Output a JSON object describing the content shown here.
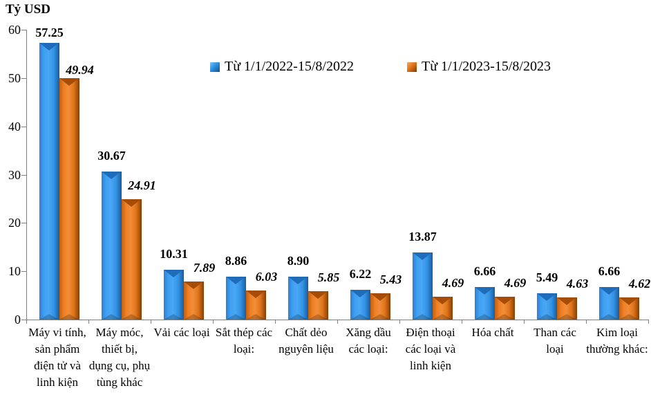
{
  "chart_data": {
    "type": "bar",
    "title": "Tỷ USD",
    "xlabel": "",
    "ylabel": "Tỷ USD",
    "ylim": [
      0,
      60
    ],
    "yticks": [
      0,
      10,
      20,
      30,
      40,
      50,
      60
    ],
    "grid": false,
    "legend_position": "top-center",
    "categories": [
      "Máy vi tính, sản phẩm điện tử và linh kiện",
      "Máy móc, thiết bị, dụng cụ, phụ tùng khác",
      "Vải các loại",
      "Sắt thép các loại:",
      "Chất dẻo nguyên liệu",
      "Xăng dầu các loại:",
      "Điện thoại các loại và linh kiện",
      "Hóa chất",
      "Than các loại",
      "Kim loại thường khác:"
    ],
    "series": [
      {
        "name": "Từ 1/1/2022-15/8/2022",
        "color": "#2E8FE0",
        "values": [
          57.25,
          30.67,
          10.31,
          8.86,
          8.9,
          6.22,
          13.87,
          6.66,
          5.49,
          6.66
        ]
      },
      {
        "name": "Từ 1/1/2023-15/8/2023",
        "color": "#E0751A",
        "values": [
          49.94,
          24.91,
          7.89,
          6.03,
          5.85,
          5.43,
          4.69,
          4.69,
          4.63,
          4.62
        ]
      }
    ]
  }
}
